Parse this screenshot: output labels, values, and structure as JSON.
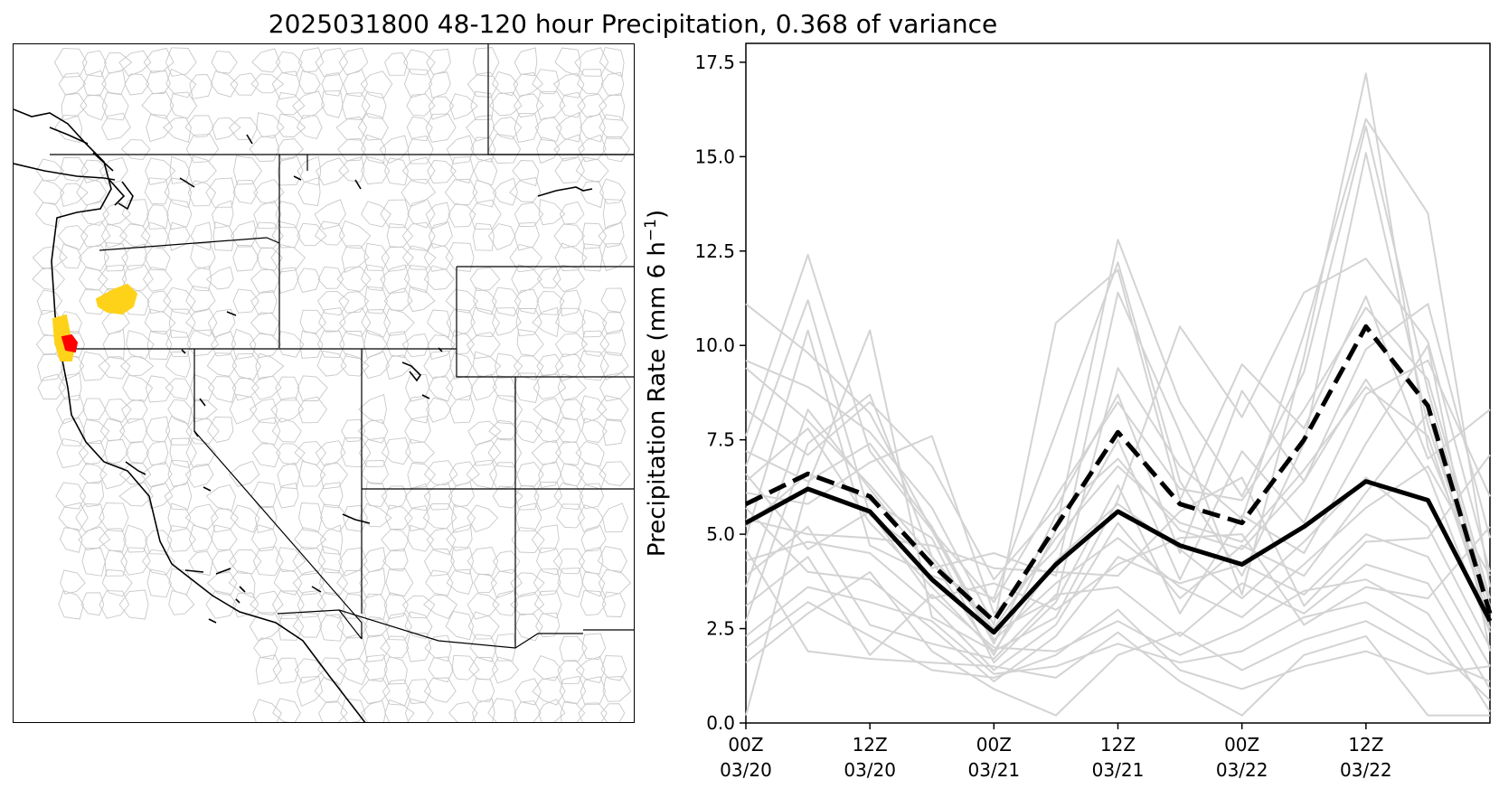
{
  "figure": {
    "title": "2025031800 48-120 hour Precipitation, 0.368 of variance"
  },
  "map": {
    "description_colors": {
      "basin_outline": "#c8c8c8",
      "state_border": "#000000",
      "coastline": "#000000",
      "highlight_yellow": "#ffd21a",
      "highlight_red": "#ff0000"
    }
  },
  "chart_data": {
    "type": "line",
    "ylabel": "Precipitation Rate (mm 6 h⁻¹)",
    "ylabel_main": "Precipitation Rate (mm 6 h",
    "ylabel_sup": "−1",
    "ylabel_close": ")",
    "ylim": [
      0,
      18
    ],
    "xlim": [
      0,
      12
    ],
    "yticks": [
      0.0,
      2.5,
      5.0,
      7.5,
      10.0,
      12.5,
      15.0,
      17.5
    ],
    "ytick_labels": [
      "0.0",
      "2.5",
      "5.0",
      "7.5",
      "10.0",
      "12.5",
      "15.0",
      "17.5"
    ],
    "xticks": [
      {
        "x": 0,
        "line1": "00Z",
        "line2": "03/20"
      },
      {
        "x": 2,
        "line1": "12Z",
        "line2": "03/20"
      },
      {
        "x": 4,
        "line1": "00Z",
        "line2": "03/21"
      },
      {
        "x": 6,
        "line1": "12Z",
        "line2": "03/21"
      },
      {
        "x": 8,
        "line1": "00Z",
        "line2": "03/22"
      },
      {
        "x": 10,
        "line1": "12Z",
        "line2": "03/22"
      }
    ],
    "x": [
      0,
      1,
      2,
      3,
      4,
      5,
      6,
      7,
      8,
      9,
      10,
      11,
      12
    ],
    "highlighted_series": [
      {
        "style": "dashed",
        "color": "#000000",
        "values": [
          5.8,
          6.6,
          6.0,
          4.2,
          2.7,
          5.2,
          7.7,
          5.8,
          5.3,
          7.5,
          10.5,
          8.4,
          2.9
        ]
      },
      {
        "style": "solid",
        "color": "#000000",
        "values": [
          5.3,
          6.2,
          5.6,
          3.8,
          2.4,
          4.2,
          5.6,
          4.7,
          4.2,
          5.2,
          6.4,
          5.9,
          2.7
        ]
      }
    ],
    "ensemble_color": "#d3d3d3",
    "ensemble_members": [
      [
        11.1,
        9.8,
        8.2,
        5.1,
        3.2,
        6.0,
        8.5,
        6.2,
        5.9,
        8.3,
        11.0,
        9.1,
        3.3
      ],
      [
        9.4,
        8.0,
        6.3,
        4.4,
        2.5,
        4.9,
        6.8,
        5.3,
        4.8,
        6.7,
        8.9,
        7.6,
        2.7
      ],
      [
        7.6,
        12.4,
        7.2,
        5.1,
        2.1,
        5.5,
        7.0,
        5.1,
        4.6,
        6.4,
        9.1,
        6.6,
        2.4
      ],
      [
        6.8,
        11.2,
        5.5,
        4.3,
        1.8,
        5.1,
        12.8,
        8.5,
        6.0,
        9.3,
        15.8,
        8.8,
        3.1
      ],
      [
        4.9,
        10.4,
        4.7,
        3.9,
        3.3,
        7.7,
        12.2,
        6.4,
        3.9,
        7.4,
        15.1,
        7.9,
        2.9
      ],
      [
        3.6,
        8.3,
        6.2,
        4.1,
        4.5,
        3.9,
        11.4,
        7.7,
        3.4,
        9.7,
        17.2,
        7.3,
        3.3
      ],
      [
        2.7,
        7.4,
        8.7,
        4.4,
        2.4,
        3.3,
        9.4,
        6.8,
        5.4,
        10.3,
        16.0,
        13.5,
        3.6
      ],
      [
        0.2,
        6.3,
        10.4,
        2.8,
        1.9,
        2.8,
        5.9,
        10.5,
        8.1,
        11.4,
        12.3,
        10.1,
        4.0
      ],
      [
        9.6,
        8.9,
        7.7,
        5.7,
        2.6,
        10.6,
        12.0,
        5.9,
        9.5,
        7.8,
        11.3,
        7.0,
        8.3
      ],
      [
        8.3,
        7.1,
        8.5,
        6.8,
        3.8,
        5.7,
        8.7,
        4.5,
        8.8,
        6.4,
        9.9,
        11.1,
        4.9
      ],
      [
        6.1,
        5.8,
        6.9,
        7.6,
        2.9,
        4.6,
        7.5,
        3.8,
        7.2,
        5.3,
        8.7,
        9.6,
        6.0
      ],
      [
        5.2,
        6.6,
        5.9,
        4.9,
        1.6,
        3.2,
        6.3,
        2.9,
        5.5,
        4.5,
        7.4,
        10.0,
        1.9
      ],
      [
        4.3,
        4.8,
        4.5,
        3.1,
        1.4,
        2.6,
        5.3,
        3.3,
        4.7,
        3.9,
        6.1,
        8.2,
        2.5
      ],
      [
        5.7,
        4.0,
        3.8,
        2.5,
        1.1,
        2.3,
        4.4,
        3.7,
        4.2,
        3.4,
        5.0,
        4.4,
        1.5
      ],
      [
        3.9,
        5.2,
        2.6,
        2.1,
        1.7,
        3.4,
        3.6,
        2.3,
        3.7,
        2.9,
        4.2,
        3.7,
        0.9
      ],
      [
        3.1,
        4.4,
        1.8,
        3.4,
        2.0,
        1.9,
        2.7,
        1.8,
        2.5,
        3.5,
        3.8,
        2.9,
        0.3
      ],
      [
        2.3,
        3.6,
        3.2,
        2.7,
        1.3,
        1.5,
        2.1,
        1.6,
        1.9,
        2.8,
        3.2,
        2.2,
        0.6
      ],
      [
        1.6,
        2.9,
        4.0,
        1.9,
        0.9,
        0.2,
        1.8,
        2.4,
        1.4,
        2.2,
        2.7,
        1.8,
        1.1
      ],
      [
        4.6,
        1.9,
        1.7,
        1.6,
        1.5,
        1.2,
        2.4,
        1.1,
        0.2,
        1.8,
        2.3,
        0.2,
        0.2
      ],
      [
        2.0,
        3.2,
        2.3,
        1.4,
        1.2,
        1.8,
        3.0,
        1.4,
        0.9,
        1.5,
        1.9,
        1.3,
        1.5
      ],
      [
        6.4,
        7.8,
        5.3,
        3.6,
        1.9,
        4.3,
        5.8,
        4.6,
        3.3,
        4.8,
        6.5,
        5.2,
        2.0
      ],
      [
        7.2,
        6.4,
        7.4,
        5.2,
        2.2,
        3.7,
        4.9,
        3.6,
        2.8,
        4.2,
        5.7,
        6.8,
        3.9
      ],
      [
        5.4,
        5.0,
        4.9,
        4.7,
        4.1,
        4.0,
        3.9,
        5.6,
        6.5,
        3.1,
        4.8,
        4.9,
        7.1
      ],
      [
        6.6,
        4.6,
        5.6,
        3.3,
        3.7,
        3.0,
        4.2,
        4.9,
        5.0,
        2.6,
        3.6,
        3.3,
        5.2
      ]
    ]
  }
}
